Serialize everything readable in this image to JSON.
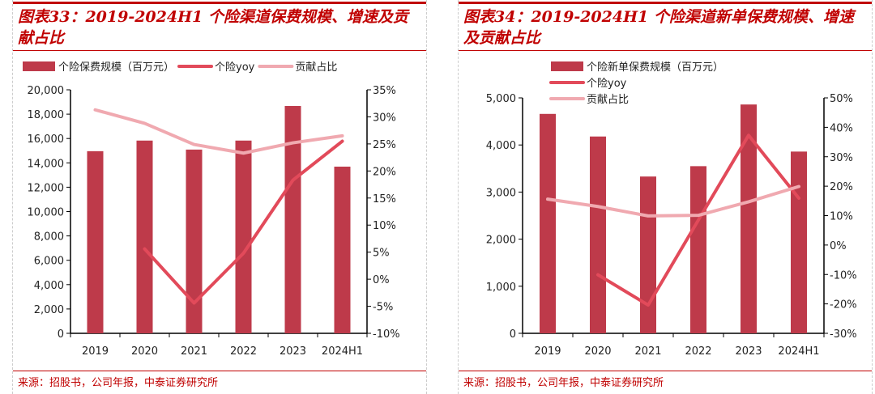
{
  "chart_data": [
    {
      "type": "bar+line",
      "title": "图表33：2019-2024H1 个险渠道保费规模、增速及贡献占比",
      "source": "来源：招股书，公司年报，中泰证券研究所",
      "categories": [
        "2019",
        "2020",
        "2021",
        "2022",
        "2023",
        "2024H1"
      ],
      "y_left": {
        "ylim": [
          0,
          20000
        ],
        "ticks": [
          "0",
          "2,000",
          "4,000",
          "6,000",
          "8,000",
          "10,000",
          "12,000",
          "14,000",
          "16,000",
          "18,000",
          "20,000"
        ]
      },
      "y_right": {
        "ylim": [
          -10,
          35
        ],
        "ticks": [
          "-10%",
          "-5%",
          "0%",
          "5%",
          "10%",
          "15%",
          "20%",
          "25%",
          "30%",
          "35%"
        ]
      },
      "legend_position": "top",
      "series": [
        {
          "name": "个险保费规模（百万元）",
          "type": "bar",
          "axis": "left",
          "color": "#be3a4a",
          "values": [
            14960,
            15830,
            15090,
            15830,
            18670,
            13690
          ]
        },
        {
          "name": "个险yoy",
          "type": "line",
          "axis": "right",
          "color": "#e24a5a",
          "values": [
            null,
            5.6,
            -4.4,
            4.8,
            18.3,
            25.5
          ]
        },
        {
          "name": "贡献占比",
          "type": "line",
          "axis": "right",
          "color": "#f0a9b0",
          "values": [
            31.3,
            28.8,
            24.9,
            23.3,
            25.2,
            26.5
          ]
        }
      ]
    },
    {
      "type": "bar+line",
      "title": "图表34：2019-2024H1 个险渠道新单保费规模、增速及贡献占比",
      "source": "来源：招股书，公司年报，中泰证券研究所",
      "categories": [
        "2019",
        "2020",
        "2021",
        "2022",
        "2023",
        "2024H1"
      ],
      "y_left": {
        "ylim": [
          0,
          5000
        ],
        "ticks": [
          "0",
          "1,000",
          "2,000",
          "3,000",
          "4,000",
          "5,000"
        ]
      },
      "y_right": {
        "ylim": [
          -30,
          50
        ],
        "ticks": [
          "-30%",
          "-20%",
          "-10%",
          "0%",
          "10%",
          "20%",
          "30%",
          "40%",
          "50%"
        ]
      },
      "legend_position": "top",
      "series": [
        {
          "name": "个险新单保费规模（百万元）",
          "type": "bar",
          "axis": "left",
          "color": "#be3a4a",
          "values": [
            4660,
            4180,
            3330,
            3550,
            4860,
            3860
          ]
        },
        {
          "name": "个险yoy",
          "type": "line",
          "axis": "right",
          "color": "#e24a5a",
          "values": [
            null,
            -10.1,
            -20.4,
            8.5,
            37.3,
            15.9
          ]
        },
        {
          "name": "贡献占比",
          "type": "line",
          "axis": "right",
          "color": "#f0a9b0",
          "values": [
            15.6,
            13.1,
            9.9,
            10.1,
            14.7,
            19.9
          ]
        }
      ]
    }
  ]
}
